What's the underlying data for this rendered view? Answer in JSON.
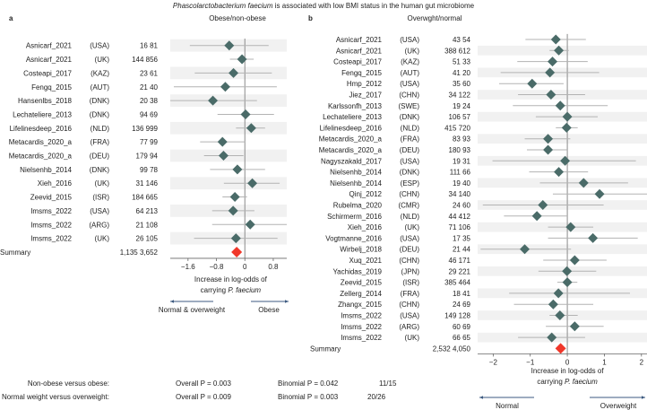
{
  "title": {
    "italic": "Phascolarctobacterium faecium",
    "rest": " is associated with low BMI status in the human gut microbiome"
  },
  "colors": {
    "estimate": "#4a6b68",
    "summary": "#f0372a",
    "whisker": "#b3b3b3",
    "stripe": "#f1f1f1",
    "zero_line": "#8a8a8a",
    "arrow": "#3d5a80"
  },
  "chart_data": [
    {
      "type": "forest",
      "panel_label": "a",
      "title": "Obese/non-obese",
      "xlabel_line1": "Increase in log-odds of",
      "xlabel_line2_prefix": "carrying ",
      "xlabel_line2_italic": "P. faecium",
      "xlim": [
        -2.1,
        1.18
      ],
      "xticks": [
        -1.6,
        -0.8,
        0,
        0.8
      ],
      "xtick_labels": [
        "−1.6",
        "−0.8",
        "0",
        "0.8"
      ],
      "arrow_left": "Normal & overweight",
      "arrow_right": "Obese",
      "stripe_first": true,
      "studies": [
        {
          "name": "Asnicarf_2021",
          "country": "(USA)",
          "counts": "16 81",
          "est": -0.44,
          "lo": -1.55,
          "hi": 0.67
        },
        {
          "name": "Asnicarf_2021",
          "country": "(UK)",
          "counts": "144 856",
          "est": -0.08,
          "lo": -0.42,
          "hi": 0.25
        },
        {
          "name": "Costeapi_2017",
          "country": "(KAZ)",
          "counts": "23 61",
          "est": -0.32,
          "lo": -1.41,
          "hi": 0.76
        },
        {
          "name": "Fengq_2015",
          "country": "(AUT)",
          "counts": "21 40",
          "est": -0.55,
          "lo": -2.0,
          "hi": 0.9
        },
        {
          "name": "Hansenlbs_2018",
          "country": "(DNK)",
          "counts": "20 38",
          "est": -0.9,
          "lo": -2.1,
          "hi": 0.34
        },
        {
          "name": "Lechateliere_2013",
          "country": "(DNK)",
          "counts": "94 69",
          "est": 0.02,
          "lo": -0.77,
          "hi": 0.82
        },
        {
          "name": "Lifelinesdeep_2016",
          "country": "(NLD)",
          "counts": "136 999",
          "est": 0.18,
          "lo": -0.25,
          "hi": 0.57
        },
        {
          "name": "Metacardis_2020_a",
          "country": "(FRA)",
          "counts": "77 99",
          "est": -0.63,
          "lo": -1.26,
          "hi": 0.0
        },
        {
          "name": "Metacardis_2020_a",
          "country": "(DEU)",
          "counts": "179 94",
          "est": -0.6,
          "lo": -1.15,
          "hi": -0.04
        },
        {
          "name": "Nielsenhb_2014",
          "country": "(DNK)",
          "counts": "99 78",
          "est": -0.21,
          "lo": -0.98,
          "hi": 0.57
        },
        {
          "name": "Xieh_2016",
          "country": "(UK)",
          "counts": "31 146",
          "est": 0.21,
          "lo": -0.59,
          "hi": 0.98
        },
        {
          "name": "Zeevid_2015",
          "country": "(ISR)",
          "counts": "184 665",
          "est": -0.28,
          "lo": -0.63,
          "hi": 0.06
        },
        {
          "name": "Imsms_2022",
          "country": "(USA)",
          "counts": "64 213",
          "est": -0.33,
          "lo": -0.92,
          "hi": 0.27
        },
        {
          "name": "Imsms_2022",
          "country": "(ARG)",
          "counts": "21 108",
          "est": 0.15,
          "lo": -0.92,
          "hi": 1.18
        },
        {
          "name": "Imsms_2022",
          "country": "(UK)",
          "counts": "26 105",
          "est": -0.25,
          "lo": -1.43,
          "hi": 0.92
        }
      ],
      "summary": {
        "name": "Summary",
        "counts": "1,135 3,652",
        "est": -0.23
      }
    },
    {
      "type": "forest",
      "panel_label": "b",
      "title": "Overwght/normal",
      "xlabel_line1": "Increase in log-odds of",
      "xlabel_line2_prefix": "carrying ",
      "xlabel_line2_italic": "P. faecium",
      "xlim": [
        -2.42,
        2.15
      ],
      "xticks": [
        -2,
        -1,
        0,
        1,
        2
      ],
      "xtick_labels": [
        "−2",
        "−1",
        "0",
        "1",
        "2"
      ],
      "arrow_left": "Normal",
      "arrow_right": "Overweight",
      "stripe_first": false,
      "studies": [
        {
          "name": "Asnicarf_2021",
          "country": "(USA)",
          "counts": "43 54",
          "est": -0.31,
          "lo": -1.13,
          "hi": 0.5
        },
        {
          "name": "Asnicarf_2021",
          "country": "(UK)",
          "counts": "388 612",
          "est": -0.23,
          "lo": -0.48,
          "hi": 0.04
        },
        {
          "name": "Costeapi_2017",
          "country": "(KAZ)",
          "counts": "51 33",
          "est": -0.4,
          "lo": -1.35,
          "hi": 0.55
        },
        {
          "name": "Fengq_2015",
          "country": "(AUT)",
          "counts": "41 20",
          "est": -0.47,
          "lo": -1.8,
          "hi": 0.86
        },
        {
          "name": "Hmp_2012",
          "country": "(USA)",
          "counts": "35 60",
          "est": -0.95,
          "lo": -1.84,
          "hi": -0.1
        },
        {
          "name": "Jiez_2017",
          "country": "(CHN)",
          "counts": "34 122",
          "est": -0.44,
          "lo": -1.33,
          "hi": 0.48
        },
        {
          "name": "Karlssonfh_2013",
          "country": "(SWE)",
          "counts": "19 24",
          "est": -0.19,
          "lo": -1.47,
          "hi": 1.09
        },
        {
          "name": "Lechateliere_2013",
          "country": "(DNK)",
          "counts": "106 57",
          "est": 0.0,
          "lo": -0.85,
          "hi": 0.82
        },
        {
          "name": "Lifelinesdeep_2016",
          "country": "(NLD)",
          "counts": "415 720",
          "est": -0.02,
          "lo": -0.31,
          "hi": 0.28
        },
        {
          "name": "Metacardis_2020_a",
          "country": "(FRA)",
          "counts": "83 93",
          "est": -0.52,
          "lo": -1.15,
          "hi": 0.08
        },
        {
          "name": "Metacardis_2020_a",
          "country": "(DEU)",
          "counts": "180 93",
          "est": -0.52,
          "lo": -1.09,
          "hi": 0.0
        },
        {
          "name": "Nagyszakald_2017",
          "country": "(USA)",
          "counts": "19 31",
          "est": -0.06,
          "lo": -2.02,
          "hi": 1.85
        },
        {
          "name": "Nielsenhb_2014",
          "country": "(DNK)",
          "counts": "111 66",
          "est": -0.23,
          "lo": -1.03,
          "hi": 0.56
        },
        {
          "name": "Nielsenhb_2014",
          "country": "(ESP)",
          "counts": "19 40",
          "est": 0.44,
          "lo": -0.74,
          "hi": 1.64
        },
        {
          "name": "Qinj_2012",
          "country": "(CHN)",
          "counts": "34 140",
          "est": 0.87,
          "lo": -0.39,
          "hi": 2.15
        },
        {
          "name": "Rubelma_2020",
          "country": "(CMR)",
          "counts": "24 60",
          "est": -0.66,
          "lo": -2.28,
          "hi": 0.98
        },
        {
          "name": "Schirmerm_2016",
          "country": "(NLD)",
          "counts": "44 412",
          "est": -0.82,
          "lo": -1.71,
          "hi": 0.0
        },
        {
          "name": "Xieh_2016",
          "country": "(UK)",
          "counts": "71 106",
          "est": 0.09,
          "lo": -0.52,
          "hi": 0.7
        },
        {
          "name": "Vogtmanne_2016",
          "country": "(USA)",
          "counts": "17 35",
          "est": 0.69,
          "lo": -0.52,
          "hi": 1.9
        },
        {
          "name": "Wirbelj_2018",
          "country": "(DEU)",
          "counts": "21 44",
          "est": -1.15,
          "lo": -2.34,
          "hi": 0.1
        },
        {
          "name": "Xuq_2021",
          "country": "(CHN)",
          "counts": "46 171",
          "est": 0.2,
          "lo": -0.65,
          "hi": 1.06
        },
        {
          "name": "Yachidas_2019",
          "country": "(JPN)",
          "counts": "29 221",
          "est": -0.01,
          "lo": -0.78,
          "hi": 0.78
        },
        {
          "name": "Zeevid_2015",
          "country": "(ISR)",
          "counts": "385 464",
          "est": 0.0,
          "lo": -0.27,
          "hi": 0.27
        },
        {
          "name": "Zellerg_2014",
          "country": "(FRA)",
          "counts": "18 41",
          "est": -0.24,
          "lo": -1.57,
          "hi": 1.69
        },
        {
          "name": "Zhangx_2015",
          "country": "(CHN)",
          "counts": "24 69",
          "est": -0.38,
          "lo": -1.44,
          "hi": 0.7
        },
        {
          "name": "Imsms_2022",
          "country": "(USA)",
          "counts": "149 128",
          "est": -0.2,
          "lo": -0.48,
          "hi": 0.28
        },
        {
          "name": "Imsms_2022",
          "country": "(ARG)",
          "counts": "60 69",
          "est": 0.2,
          "lo": -0.58,
          "hi": 0.98
        },
        {
          "name": "Imsms_2022",
          "country": "(UK)",
          "counts": "66 65",
          "est": -0.42,
          "lo": -1.33,
          "hi": 0.48
        }
      ],
      "summary": {
        "name": "Summary",
        "counts": "2,532 4,050",
        "est": -0.18
      }
    }
  ],
  "stats": [
    {
      "comparison": "Non-obese versus obese:",
      "overall": "Overall P = 0.003",
      "binomial": "Binomial P = 0.042",
      "fraction": "11/15"
    },
    {
      "comparison": "Normal weight versus overweight:",
      "overall": "Overall P = 0.009",
      "binomial": "Binomial P = 0.003",
      "fraction": "20/26"
    }
  ]
}
